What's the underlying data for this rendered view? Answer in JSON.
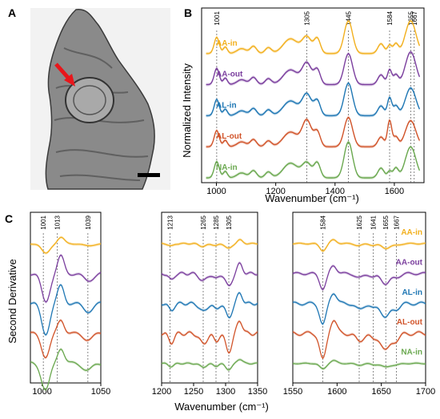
{
  "panel_labels": {
    "a": "A",
    "b": "B",
    "c": "C"
  },
  "colors": {
    "AA-in": "#f2b01e",
    "AA-out": "#7b3f9e",
    "AL-in": "#1f77b4",
    "AL-out": "#d1542a",
    "NA-in": "#6aa84f"
  },
  "chart_data": [
    {
      "type": "line",
      "panel": "B",
      "xlabel": "Wavenumber (cm⁻¹)",
      "ylabel": "Normalized Intensity",
      "xlim": [
        950,
        1700
      ],
      "xticks": [
        1000,
        1200,
        1400,
        1600
      ],
      "marker_lines": [
        1001,
        1305,
        1445,
        1584,
        1655,
        1667
      ],
      "series_order": [
        "AA-in",
        "AA-out",
        "AL-in",
        "AL-out",
        "NA-in"
      ],
      "peaks": [
        [
          1001,
          12,
          0.5
        ],
        [
          1030,
          10,
          0.2
        ],
        [
          1085,
          22,
          0.15
        ],
        [
          1125,
          15,
          0.22
        ],
        [
          1175,
          15,
          0.18
        ],
        [
          1250,
          35,
          0.45
        ],
        [
          1305,
          22,
          0.55
        ],
        [
          1340,
          15,
          0.45
        ],
        [
          1445,
          20,
          1.0
        ],
        [
          1555,
          15,
          0.3
        ],
        [
          1584,
          10,
          0.55
        ],
        [
          1605,
          12,
          0.3
        ],
        [
          1655,
          25,
          0.9
        ]
      ],
      "series_mods": {
        "AA-in": {
          "1305": 0.5,
          "1445": 1.0,
          "1584": 0.25,
          "1655": 1.0
        },
        "AA-out": {
          "1305": 0.65,
          "1445": 0.95,
          "1584": 0.45,
          "1655": 1.0
        },
        "AL-in": {
          "1305": 0.65,
          "1445": 1.0,
          "1584": 0.55,
          "1655": 0.85
        },
        "AL-out": {
          "1305": 0.8,
          "1445": 0.9,
          "1584": 0.8,
          "1655": 0.8
        },
        "NA-in": {
          "1305": 0.45,
          "1445": 1.1,
          "1584": 0.2,
          "1655": 0.95
        }
      }
    },
    {
      "type": "line",
      "panel": "C",
      "ylabel": "Second Derivative",
      "xlabel": "Wavenumber (cm⁻¹)",
      "subplots": [
        {
          "xlim": [
            990,
            1050
          ],
          "xticks": [
            1000,
            1050
          ],
          "marker_lines": [
            1001,
            1013,
            1039
          ],
          "dips": [
            [
              1003,
              5,
              1.0
            ],
            [
              1016,
              4,
              -0.6
            ],
            [
              1039,
              6,
              0.25
            ]
          ]
        },
        {
          "xlim": [
            1200,
            1350
          ],
          "xticks": [
            1200,
            1250,
            1300,
            1350
          ],
          "marker_lines": [
            1213,
            1265,
            1285,
            1305
          ],
          "dips": [
            [
              1215,
              6,
              0.3
            ],
            [
              1265,
              8,
              0.35
            ],
            [
              1285,
              6,
              0.25
            ],
            [
              1305,
              7,
              0.6
            ],
            [
              1322,
              6,
              -0.45
            ]
          ]
        },
        {
          "xlim": [
            1550,
            1700
          ],
          "xticks": [
            1550,
            1600,
            1650,
            1700
          ],
          "marker_lines": [
            1584,
            1625,
            1641,
            1655,
            1667
          ],
          "dips": [
            [
              1584,
              5,
              0.85
            ],
            [
              1596,
              5,
              -0.45
            ],
            [
              1625,
              6,
              0.25
            ],
            [
              1641,
              5,
              0.2
            ],
            [
              1655,
              7,
              0.55
            ],
            [
              1667,
              6,
              0.2
            ]
          ]
        }
      ],
      "series_order": [
        "AA-in",
        "AA-out",
        "AL-in",
        "AL-out",
        "NA-in"
      ],
      "amplitude": {
        "AA-in": [
          0.3,
          0.25,
          0.25
        ],
        "AA-out": [
          0.85,
          0.65,
          0.55
        ],
        "AL-in": [
          0.9,
          0.7,
          0.75
        ],
        "AL-out": [
          0.7,
          0.9,
          0.95
        ],
        "NA-in": [
          0.8,
          0.3,
          0.2
        ]
      }
    }
  ]
}
